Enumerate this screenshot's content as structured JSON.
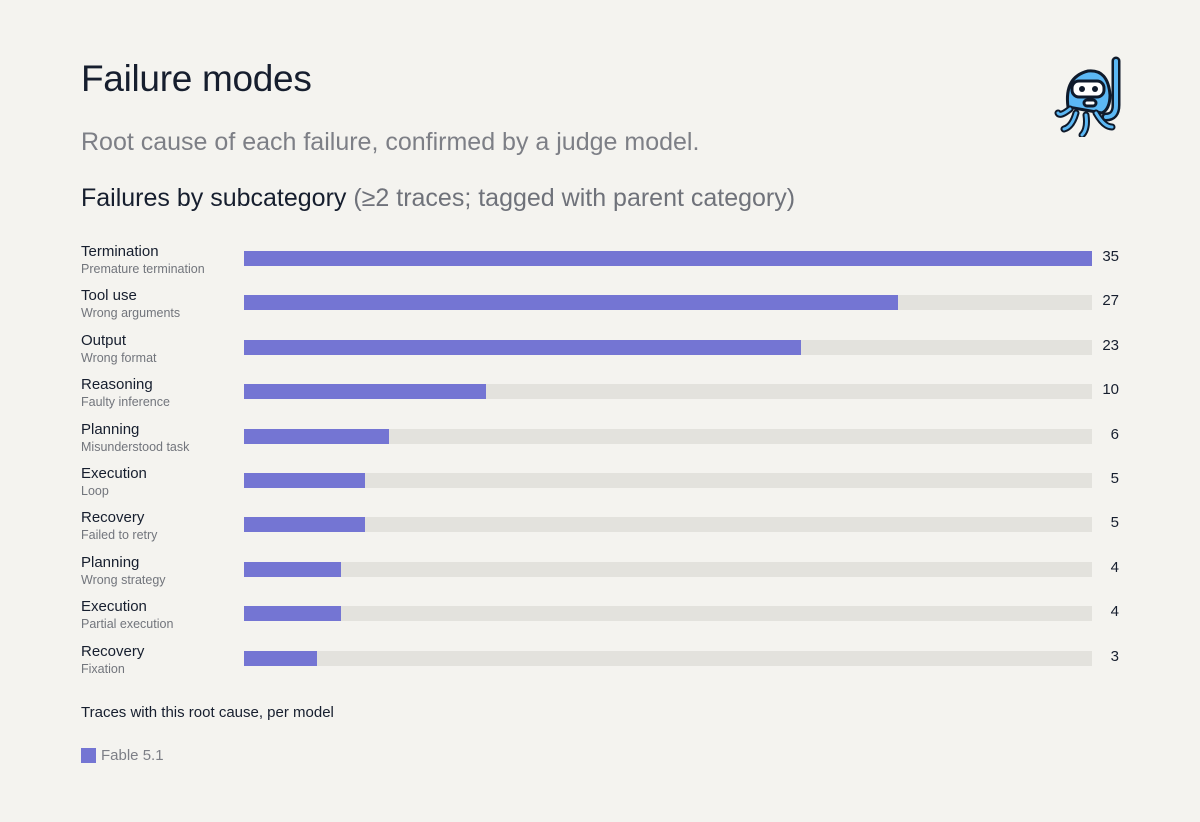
{
  "header": {
    "title": "Failure modes",
    "subtitle": "Root cause of each failure, confirmed by a judge model.",
    "section_title": "Failures by subcategory",
    "section_note": "(≥2 traces; tagged with parent category)"
  },
  "colors": {
    "bar": "#7475d3",
    "track": "#e3e2dd",
    "background": "#f4f3ef",
    "mascot": "#5cb8f5"
  },
  "mascot_icon": "octopus-snorkel-icon",
  "chart_data": {
    "type": "bar",
    "orientation": "horizontal",
    "categories": [
      {
        "category": "Termination",
        "subcategory": "Premature termination"
      },
      {
        "category": "Tool use",
        "subcategory": "Wrong arguments"
      },
      {
        "category": "Output",
        "subcategory": "Wrong format"
      },
      {
        "category": "Reasoning",
        "subcategory": "Faulty inference"
      },
      {
        "category": "Planning",
        "subcategory": "Misunderstood task"
      },
      {
        "category": "Execution",
        "subcategory": "Loop"
      },
      {
        "category": "Recovery",
        "subcategory": "Failed to retry"
      },
      {
        "category": "Planning",
        "subcategory": "Wrong strategy"
      },
      {
        "category": "Execution",
        "subcategory": "Partial execution"
      },
      {
        "category": "Recovery",
        "subcategory": "Fixation"
      }
    ],
    "series": [
      {
        "name": "Fable 5.1",
        "values": [
          35,
          27,
          23,
          10,
          6,
          5,
          5,
          4,
          4,
          3
        ]
      }
    ],
    "xlim": [
      0,
      35
    ],
    "legend_title": "Traces with this root cause, per model",
    "legend_position": "bottom-left",
    "grid": false
  }
}
